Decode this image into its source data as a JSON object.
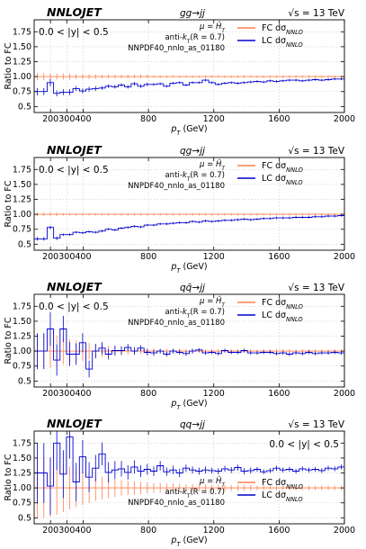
{
  "figure": {
    "brand": "NNLOJET",
    "sqrt_s": "√s = 13 TeV",
    "scale": "μ = Ĥ_T",
    "jet_alg": "anti-k_T(R = 0.7)",
    "pdf": "NNPDF40_nnlo_as_01180",
    "ylabel": "Ratio to FC",
    "xlabel": "p_T (GeV)"
  },
  "chart_data": [
    {
      "type": "line",
      "title": "gg→jj",
      "rapidity": "0.0 < |y| < 0.5",
      "legend_pos": "top-right",
      "xlim": [
        100,
        2000
      ],
      "ylim": [
        0.4,
        1.95
      ],
      "xticks": [
        200,
        300,
        400,
        800,
        1200,
        1600,
        2000
      ],
      "yticks": [
        0.5,
        0.75,
        1.0,
        1.25,
        1.5,
        1.75
      ],
      "ytick_labels": [
        "0.5",
        "0.75",
        "1.00",
        "1.25",
        "1.50",
        "1.75"
      ],
      "series": [
        {
          "name": "FC dσ_NNLO",
          "color": "#ff7f50",
          "values": [
            1,
            1,
            1,
            1,
            1,
            1,
            1,
            1,
            1,
            1,
            1,
            1,
            1,
            1,
            1,
            1,
            1,
            1,
            1,
            1,
            1,
            1,
            1,
            1,
            1,
            1,
            1,
            1,
            1,
            1,
            1,
            1,
            1,
            1,
            1,
            1,
            1,
            1,
            1,
            1,
            1,
            1,
            1,
            1,
            1,
            1,
            1,
            1
          ],
          "errors": [
            0.06,
            0.06,
            0.05,
            0.05,
            0.05,
            0.05,
            0.04,
            0.04,
            0.04,
            0.04,
            0.03,
            0.03,
            0.03,
            0.03,
            0.03,
            0.03,
            0.03,
            0.03,
            0.02,
            0.02,
            0.02,
            0.02,
            0.02,
            0.02,
            0.02,
            0.02,
            0.02,
            0.02,
            0.02,
            0.02,
            0.02,
            0.02,
            0.02,
            0.02,
            0.02,
            0.02,
            0.02,
            0.02,
            0.02,
            0.02,
            0.02,
            0.02,
            0.02,
            0.02,
            0.02,
            0.02,
            0.02,
            0.02
          ]
        },
        {
          "name": "LC dσ_NNLO",
          "color": "#0000cd",
          "values": [
            0.75,
            0.75,
            0.9,
            0.72,
            0.74,
            0.74,
            0.8,
            0.76,
            0.79,
            0.8,
            0.81,
            0.84,
            0.83,
            0.86,
            0.83,
            0.88,
            0.84,
            0.87,
            0.87,
            0.88,
            0.84,
            0.89,
            0.9,
            0.86,
            0.9,
            0.9,
            0.94,
            0.9,
            0.87,
            0.89,
            0.9,
            0.89,
            0.9,
            0.91,
            0.92,
            0.91,
            0.93,
            0.92,
            0.93,
            0.94,
            0.94,
            0.93,
            0.94,
            0.95,
            0.94,
            0.95,
            0.96,
            0.96
          ],
          "errors": [
            0.06,
            0.06,
            0.06,
            0.05,
            0.05,
            0.05,
            0.04,
            0.04,
            0.04,
            0.04,
            0.03,
            0.03,
            0.03,
            0.03,
            0.03,
            0.03,
            0.03,
            0.03,
            0.02,
            0.02,
            0.02,
            0.02,
            0.02,
            0.02,
            0.02,
            0.02,
            0.02,
            0.02,
            0.02,
            0.02,
            0.02,
            0.02,
            0.02,
            0.02,
            0.02,
            0.02,
            0.02,
            0.02,
            0.02,
            0.02,
            0.02,
            0.02,
            0.02,
            0.02,
            0.02,
            0.02,
            0.02,
            0.02
          ]
        }
      ]
    },
    {
      "type": "line",
      "title": "qg→jj",
      "rapidity": "0.0 < |y| < 0.5",
      "legend_pos": "top-right",
      "xlim": [
        100,
        2000
      ],
      "ylim": [
        0.4,
        1.95
      ],
      "xticks": [
        200,
        300,
        400,
        800,
        1200,
        1600,
        2000
      ],
      "yticks": [
        0.5,
        0.75,
        1.0,
        1.25,
        1.5,
        1.75
      ],
      "ytick_labels": [
        "0.5",
        "0.75",
        "1.00",
        "1.25",
        "1.50",
        "1.75"
      ],
      "series": [
        {
          "name": "FC dσ_NNLO",
          "color": "#ff7f50",
          "values": [
            1,
            1,
            1,
            1,
            1,
            1,
            1,
            1,
            1,
            1,
            1,
            1,
            1,
            1,
            1,
            1,
            1,
            1,
            1,
            1,
            1,
            1,
            1,
            1,
            1,
            1,
            1,
            1,
            1,
            1,
            1,
            1,
            1,
            1,
            1,
            1,
            1,
            1,
            1,
            1,
            1,
            1,
            1,
            1,
            1,
            1,
            1,
            1
          ],
          "errors": [
            0.03,
            0.03,
            0.03,
            0.03,
            0.02,
            0.02,
            0.02,
            0.02,
            0.02,
            0.02,
            0.02,
            0.02,
            0.02,
            0.02,
            0.02,
            0.02,
            0.02,
            0.02,
            0.02,
            0.02,
            0.02,
            0.02,
            0.02,
            0.02,
            0.02,
            0.02,
            0.02,
            0.02,
            0.02,
            0.02,
            0.02,
            0.02,
            0.02,
            0.02,
            0.02,
            0.02,
            0.02,
            0.02,
            0.02,
            0.02,
            0.02,
            0.02,
            0.02,
            0.02,
            0.02,
            0.02,
            0.02,
            0.02
          ]
        },
        {
          "name": "LC dσ_NNLO",
          "color": "#0000cd",
          "values": [
            0.59,
            0.59,
            0.78,
            0.6,
            0.66,
            0.66,
            0.7,
            0.69,
            0.71,
            0.7,
            0.72,
            0.75,
            0.74,
            0.77,
            0.78,
            0.8,
            0.79,
            0.82,
            0.82,
            0.84,
            0.84,
            0.85,
            0.86,
            0.86,
            0.88,
            0.87,
            0.89,
            0.88,
            0.89,
            0.9,
            0.9,
            0.91,
            0.92,
            0.91,
            0.92,
            0.93,
            0.93,
            0.94,
            0.94,
            0.94,
            0.95,
            0.95,
            0.95,
            0.96,
            0.96,
            0.97,
            0.97,
            0.98
          ],
          "errors": [
            0.03,
            0.03,
            0.03,
            0.03,
            0.02,
            0.02,
            0.02,
            0.02,
            0.02,
            0.02,
            0.02,
            0.02,
            0.02,
            0.02,
            0.02,
            0.02,
            0.02,
            0.02,
            0.02,
            0.02,
            0.02,
            0.02,
            0.02,
            0.02,
            0.02,
            0.02,
            0.02,
            0.02,
            0.02,
            0.02,
            0.02,
            0.02,
            0.02,
            0.02,
            0.02,
            0.02,
            0.02,
            0.02,
            0.02,
            0.02,
            0.02,
            0.02,
            0.02,
            0.02,
            0.02,
            0.02,
            0.02,
            0.02
          ]
        }
      ]
    },
    {
      "type": "line",
      "title": "qq̄→jj",
      "rapidity": "0.0 < |y| < 0.5",
      "legend_pos": "top-right",
      "xlim": [
        100,
        2000
      ],
      "ylim": [
        0.4,
        1.95
      ],
      "xticks": [
        200,
        300,
        400,
        800,
        1200,
        1600,
        2000
      ],
      "yticks": [
        0.5,
        0.75,
        1.0,
        1.25,
        1.5,
        1.75
      ],
      "ytick_labels": [
        "0.5",
        "0.75",
        "1.00",
        "1.25",
        "1.50",
        "1.75"
      ],
      "series": [
        {
          "name": "FC dσ_NNLO",
          "color": "#ff7f50",
          "values": [
            1,
            1,
            1,
            1,
            1,
            1,
            1,
            1,
            1,
            1,
            1,
            1,
            1,
            1,
            1,
            1,
            1,
            1,
            1,
            1,
            1,
            1,
            1,
            1,
            1,
            1,
            1,
            1,
            1,
            1,
            1,
            1,
            1,
            1,
            1,
            1,
            1,
            1,
            1,
            1,
            1,
            1,
            1,
            1,
            1,
            1,
            1,
            1
          ],
          "errors": [
            0.3,
            0.3,
            0.28,
            0.26,
            0.22,
            0.2,
            0.18,
            0.16,
            0.14,
            0.12,
            0.1,
            0.09,
            0.08,
            0.07,
            0.06,
            0.06,
            0.05,
            0.05,
            0.05,
            0.04,
            0.04,
            0.04,
            0.04,
            0.04,
            0.04,
            0.03,
            0.03,
            0.03,
            0.03,
            0.03,
            0.03,
            0.03,
            0.03,
            0.03,
            0.03,
            0.03,
            0.03,
            0.03,
            0.03,
            0.03,
            0.03,
            0.03,
            0.03,
            0.03,
            0.03,
            0.03,
            0.03,
            0.03
          ]
        },
        {
          "name": "LC dσ_NNLO",
          "color": "#0000cd",
          "values": [
            1.0,
            1.0,
            1.37,
            0.85,
            1.37,
            0.95,
            0.95,
            1.14,
            0.7,
            1.0,
            1.05,
            0.95,
            1.01,
            1.01,
            1.06,
            1.0,
            1.05,
            0.98,
            0.97,
            1.0,
            0.95,
            1.0,
            0.98,
            0.96,
            1.0,
            1.02,
            0.97,
            0.98,
            0.96,
            1.01,
            0.98,
            0.98,
            1.01,
            0.97,
            0.97,
            0.98,
            0.98,
            0.96,
            0.97,
            0.95,
            0.97,
            0.96,
            0.98,
            0.96,
            0.97,
            0.97,
            0.98,
            0.97
          ],
          "errors": [
            0.3,
            0.3,
            0.28,
            0.26,
            0.22,
            0.2,
            0.18,
            0.16,
            0.14,
            0.12,
            0.1,
            0.09,
            0.08,
            0.07,
            0.06,
            0.06,
            0.05,
            0.05,
            0.05,
            0.04,
            0.04,
            0.04,
            0.04,
            0.04,
            0.04,
            0.03,
            0.03,
            0.03,
            0.03,
            0.03,
            0.03,
            0.03,
            0.03,
            0.03,
            0.03,
            0.03,
            0.03,
            0.03,
            0.03,
            0.03,
            0.03,
            0.03,
            0.03,
            0.03,
            0.03,
            0.03,
            0.03,
            0.03
          ]
        }
      ]
    },
    {
      "type": "line",
      "title": "qq→jj",
      "rapidity": "0.0 < |y| < 0.5",
      "legend_pos": "bottom-right",
      "xlim": [
        100,
        2000
      ],
      "ylim": [
        0.4,
        1.95
      ],
      "xticks": [
        200,
        300,
        400,
        800,
        1200,
        1600,
        2000
      ],
      "yticks": [
        0.5,
        0.75,
        1.0,
        1.25,
        1.5,
        1.75
      ],
      "ytick_labels": [
        "0.5",
        "0.75",
        "1.00",
        "1.25",
        "1.50",
        "1.75"
      ],
      "series": [
        {
          "name": "FC dσ_NNLO",
          "color": "#ff7f50",
          "values": [
            1,
            1,
            1,
            1,
            1,
            1,
            1,
            1,
            1,
            1,
            1,
            1,
            1,
            1,
            1,
            1,
            1,
            1,
            1,
            1,
            1,
            1,
            1,
            1,
            1,
            1,
            1,
            1,
            1,
            1,
            1,
            1,
            1,
            1,
            1,
            1,
            1,
            1,
            1,
            1,
            1,
            1,
            1,
            1,
            1,
            1,
            1,
            1
          ],
          "errors": [
            0.5,
            0.5,
            0.48,
            0.45,
            0.4,
            0.36,
            0.32,
            0.28,
            0.25,
            0.22,
            0.19,
            0.17,
            0.15,
            0.13,
            0.12,
            0.11,
            0.1,
            0.09,
            0.08,
            0.08,
            0.07,
            0.07,
            0.07,
            0.06,
            0.06,
            0.06,
            0.06,
            0.05,
            0.05,
            0.05,
            0.05,
            0.05,
            0.05,
            0.05,
            0.04,
            0.04,
            0.04,
            0.04,
            0.04,
            0.04,
            0.04,
            0.04,
            0.04,
            0.04,
            0.04,
            0.04,
            0.04,
            0.04
          ]
        },
        {
          "name": "LC dσ_NNLO",
          "color": "#0000cd",
          "values": [
            1.25,
            1.25,
            1.03,
            1.75,
            1.23,
            1.85,
            1.1,
            1.52,
            1.18,
            1.33,
            1.57,
            1.26,
            1.3,
            1.32,
            1.26,
            1.35,
            1.28,
            1.31,
            1.28,
            1.37,
            1.27,
            1.3,
            1.25,
            1.33,
            1.3,
            1.28,
            1.3,
            1.29,
            1.28,
            1.32,
            1.3,
            1.34,
            1.28,
            1.29,
            1.31,
            1.27,
            1.29,
            1.33,
            1.3,
            1.31,
            1.28,
            1.32,
            1.3,
            1.31,
            1.29,
            1.33,
            1.32,
            1.35
          ],
          "errors": [
            0.5,
            0.5,
            0.48,
            0.45,
            0.4,
            0.36,
            0.32,
            0.28,
            0.25,
            0.22,
            0.19,
            0.17,
            0.15,
            0.13,
            0.12,
            0.11,
            0.1,
            0.09,
            0.08,
            0.08,
            0.07,
            0.07,
            0.07,
            0.06,
            0.06,
            0.06,
            0.06,
            0.05,
            0.05,
            0.05,
            0.05,
            0.05,
            0.05,
            0.05,
            0.04,
            0.04,
            0.04,
            0.04,
            0.04,
            0.04,
            0.04,
            0.04,
            0.04,
            0.04,
            0.04,
            0.04,
            0.04,
            0.04
          ]
        }
      ]
    }
  ]
}
